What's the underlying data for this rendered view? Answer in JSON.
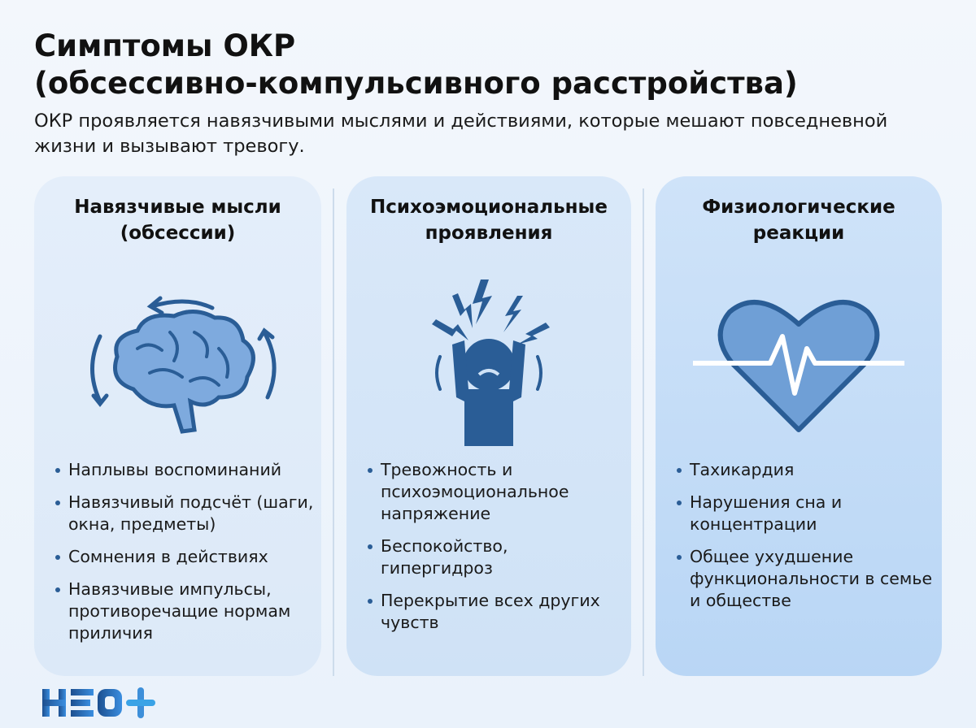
{
  "header": {
    "title_line1": "Симптомы ОКР",
    "title_line2": "(обсессивно-компульсивного расстройства)",
    "subtitle": "ОКР проявляется навязчивыми мыслями и действиями, которые мешают повседневной жизни и вызывают тревогу."
  },
  "cards": [
    {
      "heading": "Навязчивые мысли (обсессии)",
      "icon": "brain-cycle-icon",
      "items": [
        "Наплывы воспоминаний",
        "Навязчивый подсчёт (шаги, окна, предметы)",
        "Сомнения в действиях",
        "Навязчивые импульсы, противоречащие нормам приличия"
      ]
    },
    {
      "heading": "Психоэмоциональные проявления",
      "icon": "stressed-person-icon",
      "items": [
        "Тревожность и психоэмоциональное напряжение",
        "Беспокойство, гипергидроз",
        "Перекрытие всех других чувств"
      ]
    },
    {
      "heading": "Физиологические реакции",
      "icon": "heart-pulse-icon",
      "items": [
        "Тахикардия",
        "Нарушения сна и концентрации",
        "Общее ухудшение функциональности в семье и обществе"
      ]
    }
  ],
  "logo": {
    "text": "НЕО+"
  },
  "colors": {
    "accent": "#2a5d96",
    "icon_fill": "#6f9fd6",
    "background": "#eef4fb"
  }
}
